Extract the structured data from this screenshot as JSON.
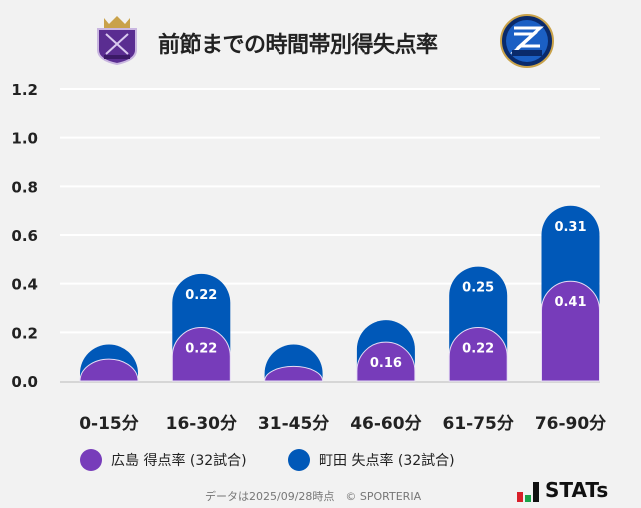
{
  "title": "前節までの時間帯別得失点率",
  "logos": {
    "left": "サンフレッチェ広島 crest",
    "right": "FC町田ゼルビア ZELVIA"
  },
  "colors": {
    "hiroshima": "#773cba",
    "machida": "#0058b8"
  },
  "chart_data": {
    "type": "bar",
    "stacked": true,
    "categories": [
      "0-15分",
      "16-30分",
      "31-45分",
      "46-60分",
      "61-75分",
      "76-90分"
    ],
    "series": [
      {
        "name": "広島 得点率 (32試合)",
        "values": [
          0.09,
          0.22,
          0.06,
          0.16,
          0.22,
          0.41
        ],
        "color": "#773cba"
      },
      {
        "name": "町田 失点率 (32試合)",
        "values": [
          0.06,
          0.22,
          0.09,
          0.09,
          0.25,
          0.31
        ],
        "color": "#0058b8"
      }
    ],
    "ylim": [
      0,
      1.2
    ],
    "yticks": [
      "0.0",
      "0.2",
      "0.4",
      "0.6",
      "0.8",
      "1.0",
      "1.2"
    ],
    "grid": true,
    "legend": "bottom"
  },
  "footer": "データは2025/09/28時点　© SPORTERIA",
  "brand": "STATs"
}
